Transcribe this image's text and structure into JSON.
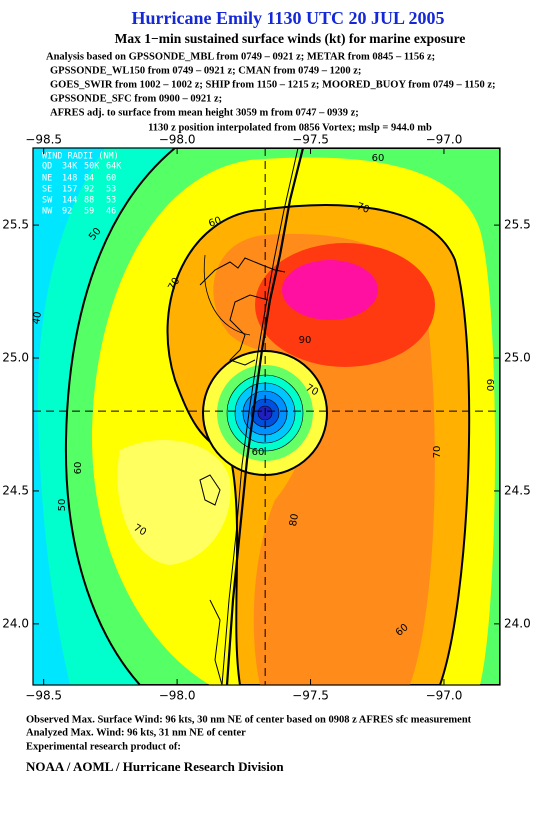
{
  "title": "Hurricane Emily 1130 UTC 20 JUL 2005",
  "subtitle": "Max 1−min sustained surface winds (kt) for marine exposure",
  "analysis_lines": [
    "Analysis based on  GPSSONDE_MBL from 0749 – 0921 z;  METAR from 0845 – 1156 z;",
    "GPSSONDE_WL150 from 0749 – 0921 z;  CMAN from 0749 – 1200 z;",
    "GOES_SWIR from 1002 – 1002 z;  SHIP from 1150 – 1215 z;  MOORED_BUOY from 0749 – 1150 z;",
    "GPSSONDE_SFC from 0900 – 0921 z;",
    "AFRES adj. to surface from mean height 3059 m from 0747 – 0939 z;",
    "1130 z position interpolated from 0856 Vortex; mslp = 944.0 mb"
  ],
  "map": {
    "xlim": [
      -98.54,
      -96.79
    ],
    "ylim": [
      23.77,
      25.79
    ],
    "xticks": [
      {
        "value": -98.5,
        "label": "−98.5"
      },
      {
        "value": -98,
        "label": "−98.0"
      },
      {
        "value": -97.5,
        "label": "−97.5"
      },
      {
        "value": -97,
        "label": "−97.0"
      }
    ],
    "yticks": [
      {
        "value": 24,
        "label": "24.0"
      },
      {
        "value": 24.5,
        "label": "24.5"
      },
      {
        "value": 25,
        "label": "25.0"
      },
      {
        "value": 25.5,
        "label": "25.5"
      }
    ],
    "center": [
      -97.67,
      24.8
    ],
    "contour_labels": [
      40,
      50,
      50,
      60,
      60,
      60,
      60,
      60,
      70,
      70,
      70,
      70,
      70,
      80,
      90,
      60
    ],
    "wind_radii": {
      "title": "WIND RADII (NM)",
      "header": [
        "QD",
        "34K",
        "50K",
        "64K"
      ],
      "rows": [
        [
          "NE",
          148,
          84,
          60
        ],
        [
          "SE",
          157,
          92,
          53
        ],
        [
          "SW",
          144,
          88,
          53
        ],
        [
          "NW",
          92,
          59,
          46
        ]
      ]
    }
  },
  "footer": [
    "Observed Max. Surface Wind: 96 kts, 30 nm NE of center based on 0908 z AFRES sfc measurement",
    "Analyzed Max. Wind: 96 kts, 31 nm NE of center",
    "Experimental research product of:"
  ],
  "organization": "NOAA / AOML / Hurricane Research Division"
}
